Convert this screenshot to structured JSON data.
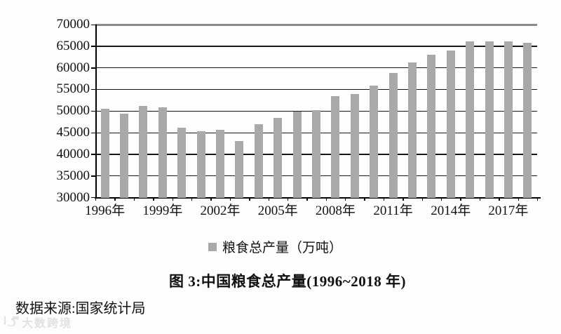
{
  "chart_data": {
    "type": "bar",
    "title": "图 3:中国粮食总产量(1996~2018 年)",
    "legend_label": "粮食总产量（万吨）",
    "categories": [
      "1996",
      "1997",
      "1998",
      "1999",
      "2000",
      "2001",
      "2002",
      "2003",
      "2004",
      "2005",
      "2006",
      "2007",
      "2008",
      "2009",
      "2010",
      "2011",
      "2012",
      "2013",
      "2014",
      "2015",
      "2016",
      "2017",
      "2018"
    ],
    "values": [
      50454,
      49417,
      51230,
      50839,
      46218,
      45264,
      45706,
      43070,
      46947,
      48402,
      49804,
      50160,
      53434,
      53940,
      55911,
      58849,
      61223,
      63048,
      63965,
      66060,
      66044,
      66161,
      65789
    ],
    "x_tick_labels": [
      "1996年",
      "1999年",
      "2002年",
      "2005年",
      "2008年",
      "2011年",
      "2014年",
      "2017年"
    ],
    "x_label_every": 3,
    "y_ticks": [
      30000,
      35000,
      40000,
      45000,
      50000,
      55000,
      60000,
      65000,
      70000
    ],
    "ylim": [
      30000,
      70000
    ],
    "grid": true,
    "legend_position": "bottom",
    "bar_color": "#a9a9a9",
    "gridline_color": "#161616",
    "top_border_color": "#8a8a8a",
    "axis_color": "#000000"
  },
  "source": "数据来源:国家统计局",
  "watermark": {
    "text": "大数跨境"
  }
}
